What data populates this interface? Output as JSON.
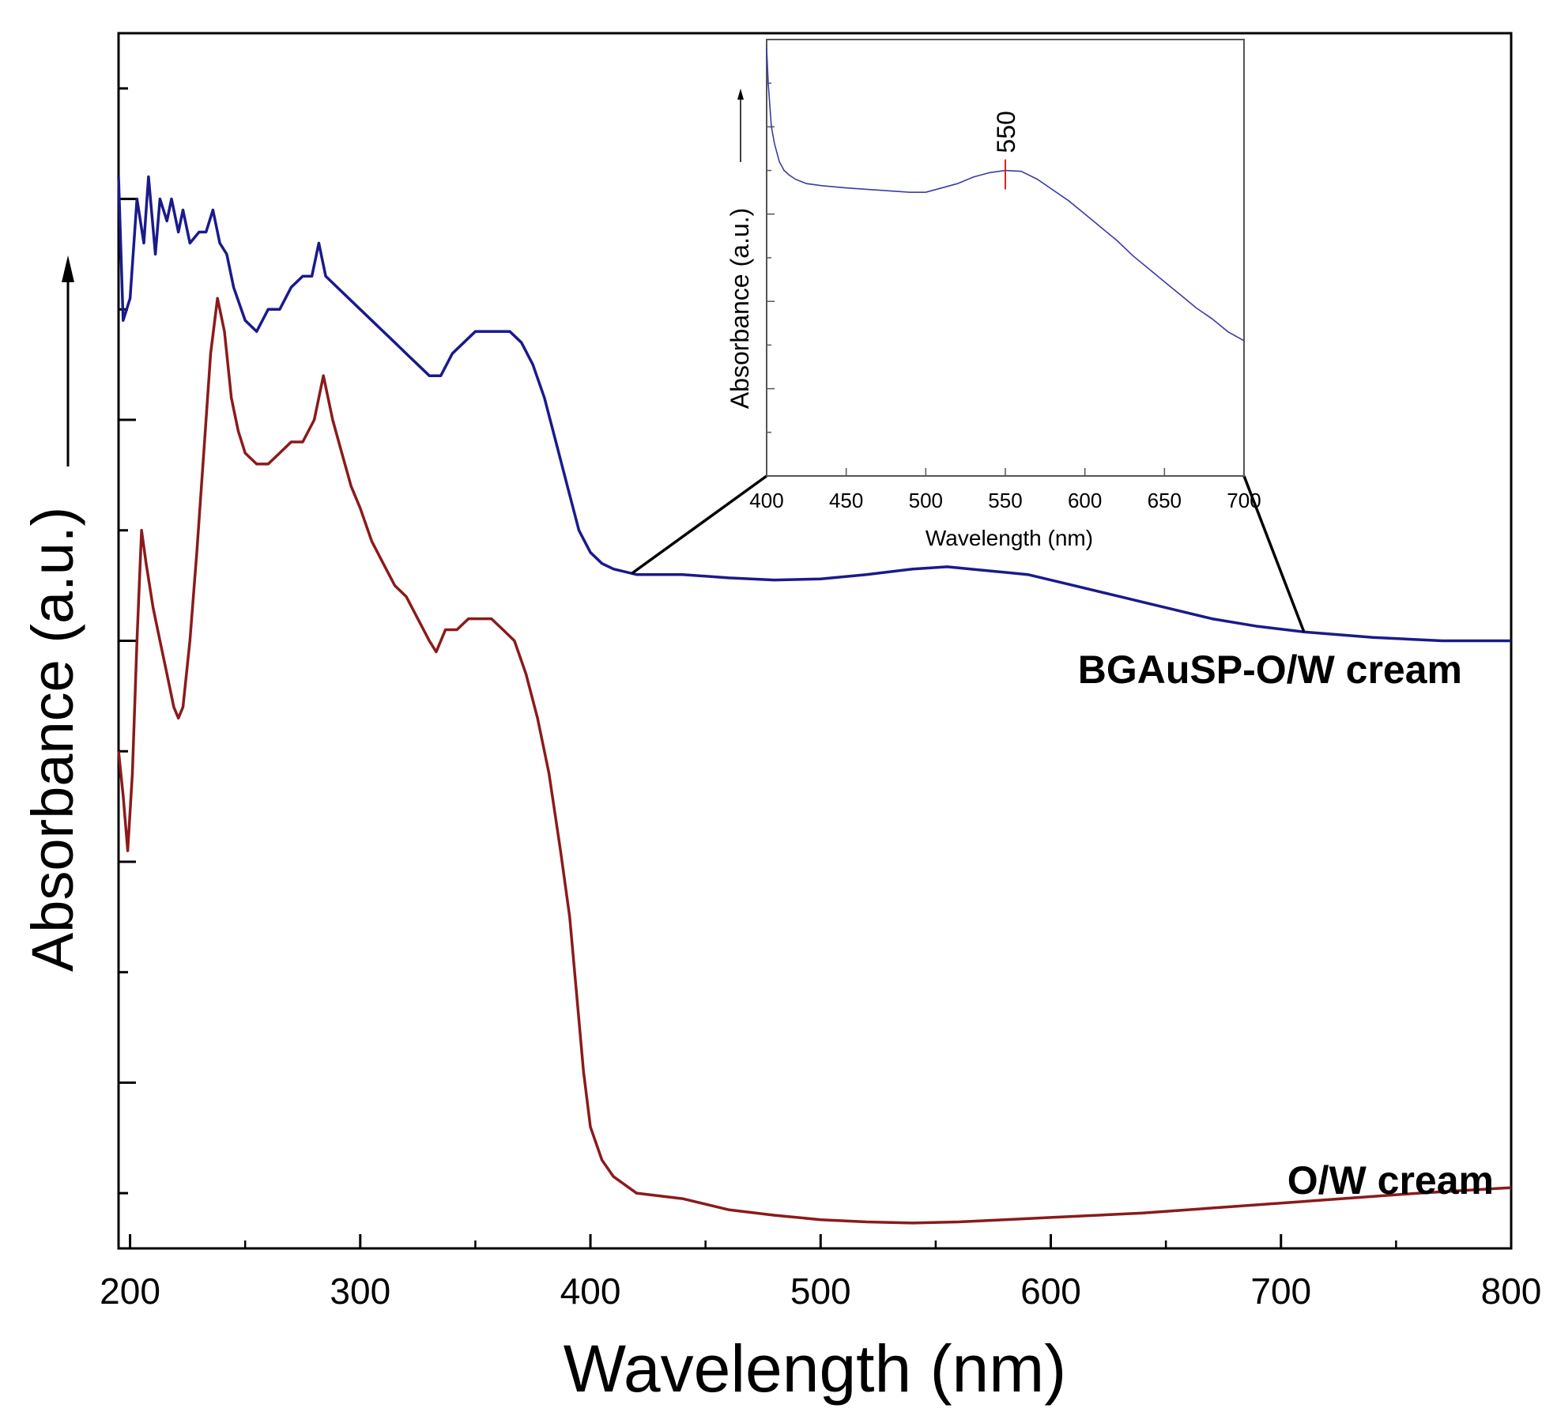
{
  "chart_data": [
    {
      "type": "line",
      "xlabel": "Wavelength (nm)",
      "ylabel": "Absorbance (a.u.)",
      "xlim": [
        195,
        800
      ],
      "ylim": [
        -0.05,
        1.05
      ],
      "x_ticks": [
        200,
        300,
        400,
        500,
        600,
        700,
        800
      ],
      "y_tick_labels_shown": false,
      "ylabel_arrow": true,
      "series": [
        {
          "name": "BGAuSP-O/W cream",
          "color": "#1a1a8c",
          "points": [
            [
              195,
              0.92
            ],
            [
              197,
              0.79
            ],
            [
              200,
              0.81
            ],
            [
              203,
              0.9
            ],
            [
              206,
              0.86
            ],
            [
              208,
              0.92
            ],
            [
              211,
              0.85
            ],
            [
              213,
              0.9
            ],
            [
              216,
              0.88
            ],
            [
              218,
              0.9
            ],
            [
              221,
              0.87
            ],
            [
              223,
              0.89
            ],
            [
              226,
              0.86
            ],
            [
              230,
              0.87
            ],
            [
              233,
              0.87
            ],
            [
              236,
              0.89
            ],
            [
              239,
              0.86
            ],
            [
              242,
              0.85
            ],
            [
              245,
              0.82
            ],
            [
              250,
              0.79
            ],
            [
              255,
              0.78
            ],
            [
              260,
              0.8
            ],
            [
              265,
              0.8
            ],
            [
              270,
              0.82
            ],
            [
              275,
              0.83
            ],
            [
              279,
              0.83
            ],
            [
              282,
              0.86
            ],
            [
              285,
              0.83
            ],
            [
              290,
              0.82
            ],
            [
              295,
              0.81
            ],
            [
              300,
              0.8
            ],
            [
              305,
              0.79
            ],
            [
              310,
              0.78
            ],
            [
              315,
              0.77
            ],
            [
              320,
              0.76
            ],
            [
              325,
              0.75
            ],
            [
              330,
              0.74
            ],
            [
              335,
              0.74
            ],
            [
              340,
              0.76
            ],
            [
              345,
              0.77
            ],
            [
              350,
              0.78
            ],
            [
              355,
              0.78
            ],
            [
              360,
              0.78
            ],
            [
              365,
              0.78
            ],
            [
              370,
              0.77
            ],
            [
              375,
              0.75
            ],
            [
              380,
              0.72
            ],
            [
              385,
              0.68
            ],
            [
              390,
              0.64
            ],
            [
              395,
              0.6
            ],
            [
              400,
              0.58
            ],
            [
              405,
              0.57
            ],
            [
              410,
              0.565
            ],
            [
              420,
              0.56
            ],
            [
              440,
              0.56
            ],
            [
              460,
              0.557
            ],
            [
              480,
              0.555
            ],
            [
              500,
              0.556
            ],
            [
              520,
              0.56
            ],
            [
              540,
              0.565
            ],
            [
              555,
              0.567
            ],
            [
              570,
              0.564
            ],
            [
              590,
              0.56
            ],
            [
              610,
              0.55
            ],
            [
              630,
              0.54
            ],
            [
              650,
              0.53
            ],
            [
              670,
              0.52
            ],
            [
              690,
              0.513
            ],
            [
              710,
              0.508
            ],
            [
              740,
              0.503
            ],
            [
              770,
              0.5
            ],
            [
              800,
              0.5
            ]
          ]
        },
        {
          "name": "O/W cream",
          "color": "#8b1a1a",
          "points": [
            [
              195,
              0.4
            ],
            [
              197,
              0.36
            ],
            [
              199,
              0.31
            ],
            [
              201,
              0.38
            ],
            [
              203,
              0.5
            ],
            [
              205,
              0.6
            ],
            [
              207,
              0.57
            ],
            [
              210,
              0.53
            ],
            [
              213,
              0.5
            ],
            [
              216,
              0.47
            ],
            [
              219,
              0.44
            ],
            [
              221,
              0.43
            ],
            [
              223,
              0.44
            ],
            [
              226,
              0.5
            ],
            [
              229,
              0.58
            ],
            [
              232,
              0.67
            ],
            [
              235,
              0.76
            ],
            [
              238,
              0.81
            ],
            [
              241,
              0.78
            ],
            [
              244,
              0.72
            ],
            [
              247,
              0.69
            ],
            [
              250,
              0.67
            ],
            [
              255,
              0.66
            ],
            [
              260,
              0.66
            ],
            [
              265,
              0.67
            ],
            [
              270,
              0.68
            ],
            [
              275,
              0.68
            ],
            [
              280,
              0.7
            ],
            [
              284,
              0.74
            ],
            [
              288,
              0.7
            ],
            [
              292,
              0.67
            ],
            [
              296,
              0.64
            ],
            [
              300,
              0.62
            ],
            [
              305,
              0.59
            ],
            [
              310,
              0.57
            ],
            [
              315,
              0.55
            ],
            [
              320,
              0.54
            ],
            [
              325,
              0.52
            ],
            [
              330,
              0.5
            ],
            [
              333,
              0.49
            ],
            [
              337,
              0.51
            ],
            [
              342,
              0.51
            ],
            [
              347,
              0.52
            ],
            [
              352,
              0.52
            ],
            [
              357,
              0.52
            ],
            [
              362,
              0.51
            ],
            [
              367,
              0.5
            ],
            [
              372,
              0.47
            ],
            [
              377,
              0.43
            ],
            [
              382,
              0.38
            ],
            [
              387,
              0.31
            ],
            [
              391,
              0.25
            ],
            [
              394,
              0.18
            ],
            [
              397,
              0.11
            ],
            [
              400,
              0.06
            ],
            [
              405,
              0.03
            ],
            [
              410,
              0.015
            ],
            [
              420,
              0.0
            ],
            [
              440,
              -0.005
            ],
            [
              460,
              -0.015
            ],
            [
              480,
              -0.02
            ],
            [
              500,
              -0.024
            ],
            [
              520,
              -0.026
            ],
            [
              540,
              -0.027
            ],
            [
              560,
              -0.026
            ],
            [
              580,
              -0.024
            ],
            [
              600,
              -0.022
            ],
            [
              640,
              -0.018
            ],
            [
              680,
              -0.012
            ],
            [
              720,
              -0.006
            ],
            [
              760,
              0.0
            ],
            [
              800,
              0.005
            ]
          ]
        }
      ],
      "inset": {
        "type": "line",
        "xlabel": "Wavelength (nm)",
        "ylabel": "Absorbance (a.u.)",
        "xlim": [
          400,
          700
        ],
        "ylim": [
          0,
          1
        ],
        "x_ticks": [
          400,
          450,
          500,
          550,
          600,
          650,
          700
        ],
        "ylabel_arrow": true,
        "color": "#3b3ba8",
        "marker_color": "#e02020",
        "annotation": {
          "x": 550,
          "text": "550"
        },
        "points": [
          [
            400,
            0.98
          ],
          [
            401,
            0.9
          ],
          [
            403,
            0.8
          ],
          [
            405,
            0.76
          ],
          [
            408,
            0.72
          ],
          [
            411,
            0.7
          ],
          [
            414,
            0.69
          ],
          [
            418,
            0.68
          ],
          [
            425,
            0.67
          ],
          [
            435,
            0.665
          ],
          [
            450,
            0.66
          ],
          [
            470,
            0.655
          ],
          [
            490,
            0.65
          ],
          [
            500,
            0.65
          ],
          [
            510,
            0.66
          ],
          [
            520,
            0.67
          ],
          [
            530,
            0.685
          ],
          [
            540,
            0.695
          ],
          [
            550,
            0.7
          ],
          [
            560,
            0.698
          ],
          [
            570,
            0.68
          ],
          [
            580,
            0.655
          ],
          [
            590,
            0.63
          ],
          [
            600,
            0.6
          ],
          [
            610,
            0.57
          ],
          [
            620,
            0.54
          ],
          [
            630,
            0.505
          ],
          [
            640,
            0.475
          ],
          [
            650,
            0.445
          ],
          [
            660,
            0.415
          ],
          [
            670,
            0.385
          ],
          [
            680,
            0.36
          ],
          [
            690,
            0.33
          ],
          [
            700,
            0.31
          ]
        ]
      }
    }
  ]
}
